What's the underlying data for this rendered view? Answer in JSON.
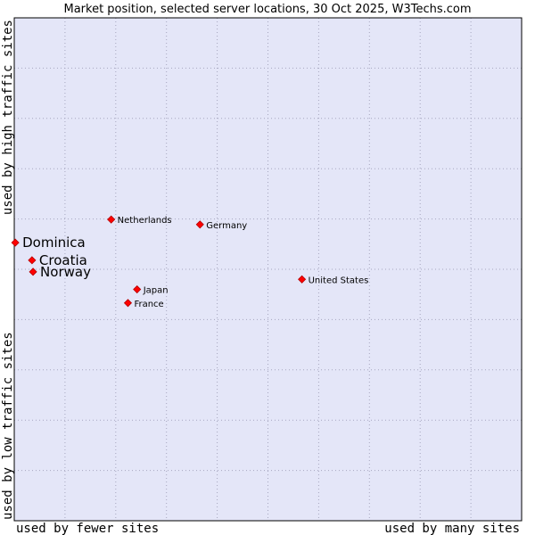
{
  "chart_data": {
    "type": "scatter",
    "title": "Market position, selected server locations, 30 Oct 2025, W3Techs.com",
    "xlabel_left": "used by fewer sites",
    "xlabel_right": "used by many sites",
    "ylabel_bottom": "used by low traffic sites",
    "ylabel_top": "used by high traffic sites",
    "xlim": [
      0,
      100
    ],
    "ylim": [
      0,
      100
    ],
    "grid": true,
    "colors": {
      "plot_bg": "#e4e6f8",
      "grid": "#a6a6bf",
      "marker": "#ff0000",
      "marker_edge": "#b40000"
    },
    "points": [
      {
        "label": "Dominica",
        "x": 0.2,
        "y": 55.3,
        "emphasis": true
      },
      {
        "label": "Croatia",
        "x": 3.5,
        "y": 51.8,
        "emphasis": true
      },
      {
        "label": "Norway",
        "x": 3.7,
        "y": 49.5,
        "emphasis": true
      },
      {
        "label": "Netherlands",
        "x": 19.1,
        "y": 59.9,
        "emphasis": false
      },
      {
        "label": "Germany",
        "x": 36.6,
        "y": 58.9,
        "emphasis": false
      },
      {
        "label": "United States",
        "x": 56.7,
        "y": 48.0,
        "emphasis": false
      },
      {
        "label": "Japan",
        "x": 24.2,
        "y": 46.0,
        "emphasis": false
      },
      {
        "label": "France",
        "x": 22.4,
        "y": 43.3,
        "emphasis": false
      }
    ]
  }
}
